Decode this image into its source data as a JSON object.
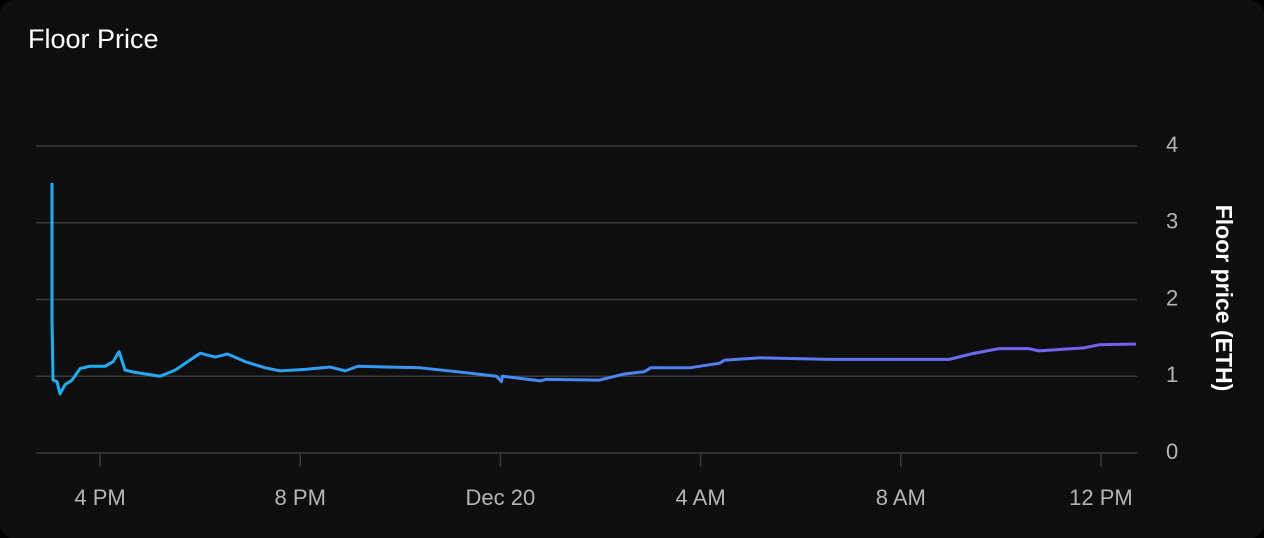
{
  "chart_data": {
    "type": "line",
    "title": "Floor Price",
    "y_label": "Floor price (ETH)",
    "x": [
      15.04,
      15.04,
      15.06,
      15.14,
      15.2,
      15.3,
      15.44,
      15.6,
      15.8,
      16.1,
      16.26,
      16.38,
      16.5,
      16.7,
      17.2,
      17.5,
      18.0,
      18.3,
      18.55,
      18.9,
      19.3,
      19.6,
      20.1,
      20.6,
      20.9,
      21.15,
      22.4,
      23.4,
      23.92,
      24.02,
      24.04,
      24.8,
      24.92,
      25.98,
      26.48,
      26.88,
      27.0,
      27.78,
      28.38,
      28.48,
      29.17,
      30.57,
      32.97,
      33.47,
      33.96,
      34.56,
      34.76,
      35.66,
      35.96,
      36.7
    ],
    "series": [
      {
        "name": "Floor price",
        "color": "#18b2f4",
        "gradient_end": "#7b5cf3",
        "values": [
          3.52,
          1.73,
          0.95,
          0.93,
          0.77,
          0.89,
          0.95,
          1.1,
          1.13,
          1.13,
          1.19,
          1.32,
          1.08,
          1.05,
          1.0,
          1.08,
          1.3,
          1.25,
          1.29,
          1.19,
          1.11,
          1.07,
          1.09,
          1.12,
          1.07,
          1.13,
          1.11,
          1.04,
          1.0,
          0.93,
          1.0,
          0.94,
          0.96,
          0.95,
          1.03,
          1.06,
          1.11,
          1.11,
          1.17,
          1.21,
          1.24,
          1.22,
          1.22,
          1.3,
          1.36,
          1.36,
          1.33,
          1.37,
          1.41,
          1.42
        ]
      }
    ],
    "xlim": [
      14.72,
      36.72
    ],
    "xticks": [
      {
        "value": 16,
        "label": "4 PM"
      },
      {
        "value": 20,
        "label": "8 PM"
      },
      {
        "value": 24,
        "label": "Dec 20"
      },
      {
        "value": 28,
        "label": "4 AM"
      },
      {
        "value": 32,
        "label": "8 AM"
      },
      {
        "value": 36,
        "label": "12 PM"
      }
    ],
    "ylim": [
      0,
      4
    ],
    "yticks": [
      0,
      1,
      2,
      3,
      4
    ],
    "grid": true
  }
}
